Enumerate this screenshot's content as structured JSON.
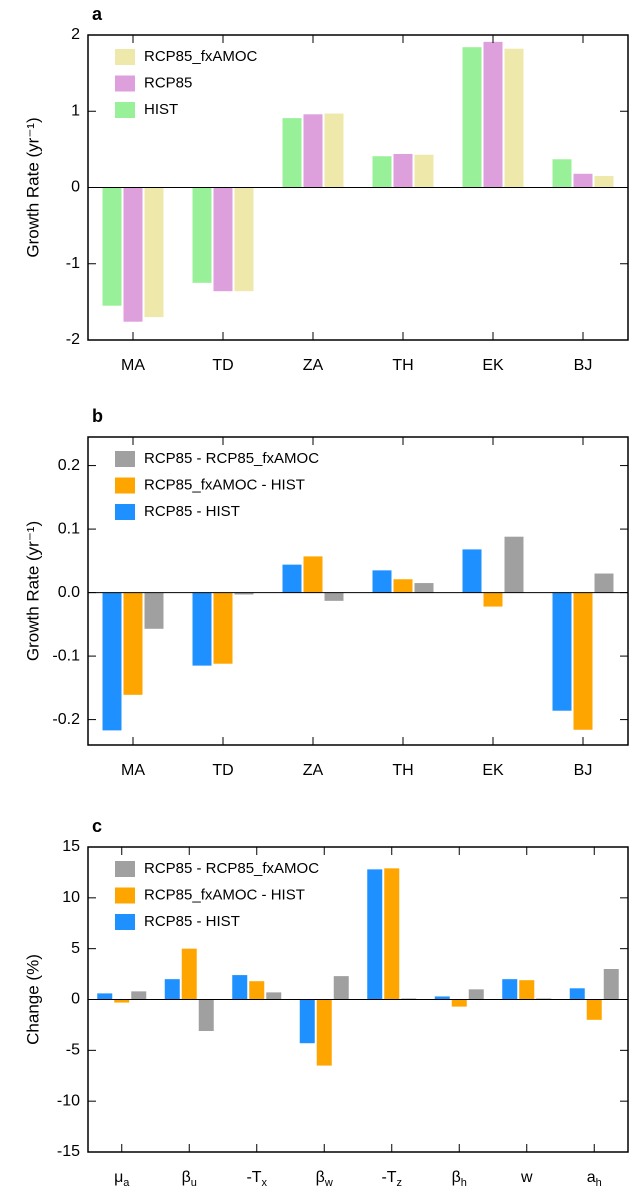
{
  "chart_data": [
    {
      "type": "bar",
      "title": "a",
      "y_label": "Growth Rate (yr⁻¹)",
      "categories": [
        "MA",
        "TD",
        "ZA",
        "TH",
        "EK",
        "BJ"
      ],
      "series": [
        {
          "name": "HIST",
          "color": "#98f098",
          "values": [
            -1.55,
            -1.25,
            0.91,
            0.41,
            1.84,
            0.37
          ]
        },
        {
          "name": "RCP85",
          "color": "#dda0dd",
          "values": [
            -1.76,
            -1.36,
            0.96,
            0.44,
            1.91,
            0.18
          ]
        },
        {
          "name": "RCP85_fxAMOC",
          "color": "#eee8aa",
          "values": [
            -1.7,
            -1.36,
            0.97,
            0.43,
            1.82,
            0.15
          ]
        }
      ],
      "ylim": [
        -2,
        2
      ],
      "yticks": [
        -2,
        -1,
        0,
        1,
        2
      ],
      "legend": "upper left"
    },
    {
      "type": "bar",
      "title": "b",
      "y_label": "Growth Rate (yr⁻¹)",
      "categories": [
        "MA",
        "TD",
        "ZA",
        "TH",
        "EK",
        "BJ"
      ],
      "series": [
        {
          "name": "RCP85 - HIST",
          "color": "#1e90ff",
          "values": [
            -0.217,
            -0.115,
            0.044,
            0.035,
            0.068,
            -0.186
          ]
        },
        {
          "name": "RCP85_fxAMOC - HIST",
          "color": "#ffa500",
          "values": [
            -0.161,
            -0.112,
            0.057,
            0.021,
            -0.022,
            -0.216
          ]
        },
        {
          "name": "RCP85 - RCP85_fxAMOC",
          "color": "#a0a0a0",
          "values": [
            -0.057,
            -0.003,
            -0.013,
            0.015,
            0.088,
            0.03
          ]
        }
      ],
      "ylim": [
        -0.24,
        0.245
      ],
      "yticks": [
        -0.2,
        -0.1,
        {
          "value": 0,
          "label": "0.0"
        },
        0.1,
        0.2
      ],
      "legend": "upper left"
    },
    {
      "type": "bar",
      "title": "c",
      "y_label": "Change (%)",
      "categories": [
        "μa",
        "βu",
        "-Tx",
        "βw",
        "-Tz",
        "βh",
        "w",
        "ah"
      ],
      "series": [
        {
          "name": "RCP85 - HIST",
          "color": "#1e90ff",
          "values": [
            0.6,
            2.0,
            2.4,
            -4.3,
            12.8,
            0.3,
            2.0,
            1.1
          ]
        },
        {
          "name": "RCP85_fxAMOC - HIST",
          "color": "#ffa500",
          "values": [
            -0.3,
            5.0,
            1.8,
            -6.5,
            12.9,
            -0.7,
            1.9,
            -2.0
          ]
        },
        {
          "name": "RCP85 - RCP85_fxAMOC",
          "color": "#a0a0a0",
          "values": [
            0.8,
            -3.1,
            0.7,
            2.3,
            0.1,
            1.0,
            0.1,
            3.0
          ]
        }
      ],
      "ylim": [
        -15,
        15
      ],
      "yticks": [
        -15,
        -10,
        -5,
        0,
        5,
        10,
        15
      ],
      "legend": "upper left"
    }
  ]
}
